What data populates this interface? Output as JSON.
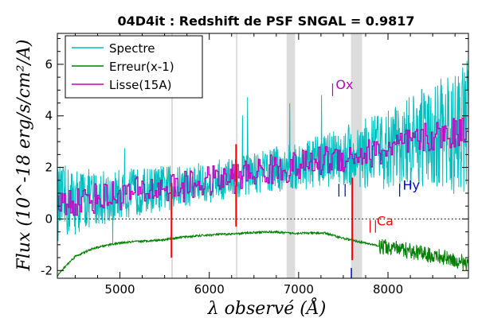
{
  "chart_data": {
    "type": "line",
    "title": "04D4it : Redshift de PSF SNGAL = 0.9817",
    "xlabel": "λ observé (Å)",
    "ylabel": "Flux (10^-18 erg/s/cm²/A)",
    "xlim": [
      4300,
      8900
    ],
    "ylim": [
      -2.3,
      7.2
    ],
    "xticks": [
      5000,
      6000,
      7000,
      8000
    ],
    "xtick_labels": [
      "5000",
      "6000",
      "7000",
      "8000"
    ],
    "yticks": [
      -2,
      0,
      2,
      4,
      6
    ],
    "ytick_labels": [
      "-2",
      "0",
      "2",
      "4",
      "6"
    ],
    "legend": {
      "location": "upper-left",
      "entries": [
        {
          "label": "Spectre",
          "color": "#00bfbf"
        },
        {
          "label": "Erreur(x-1)",
          "color": "#008000"
        },
        {
          "label": "Lisse(15A)",
          "color": "#bf00bf"
        }
      ]
    },
    "series": [
      {
        "name": "Spectre",
        "color": "#00bfbf",
        "x": [
          4300,
          4500,
          4700,
          4900,
          5100,
          5300,
          5500,
          5700,
          5900,
          6100,
          6300,
          6500,
          6700,
          6900,
          7100,
          7300,
          7500,
          7700,
          7900,
          8100,
          8300,
          8500,
          8700,
          8900
        ],
        "y": [
          0.6,
          0.7,
          0.8,
          0.9,
          1.0,
          1.1,
          1.2,
          1.25,
          1.4,
          1.5,
          1.6,
          1.8,
          1.9,
          2.0,
          2.1,
          2.3,
          2.4,
          2.5,
          2.6,
          2.8,
          3.0,
          3.2,
          3.3,
          3.5
        ],
        "noise": [
          2.0,
          1.8,
          1.5,
          1.4,
          1.3,
          1.2,
          1.2,
          1.1,
          1.1,
          1.1,
          1.1,
          1.1,
          1.2,
          1.2,
          1.3,
          1.4,
          1.6,
          1.8,
          2.0,
          2.2,
          2.5,
          2.8,
          3.2,
          3.6
        ]
      },
      {
        "name": "Lisse(15A)",
        "color": "#bf00bf",
        "x": [
          4300,
          4500,
          4700,
          4900,
          5100,
          5300,
          5500,
          5700,
          5900,
          6100,
          6300,
          6500,
          6700,
          6900,
          7100,
          7300,
          7500,
          7700,
          7900,
          8100,
          8300,
          8500,
          8700,
          8900
        ],
        "y": [
          0.6,
          0.7,
          0.8,
          0.9,
          1.0,
          1.1,
          1.2,
          1.25,
          1.4,
          1.5,
          1.6,
          1.8,
          1.9,
          2.0,
          2.1,
          2.3,
          2.4,
          2.5,
          2.6,
          2.8,
          3.0,
          3.2,
          3.3,
          3.5
        ]
      },
      {
        "name": "Erreur(x-1)",
        "color": "#008000",
        "x": [
          4300,
          4400,
          4500,
          4700,
          4900,
          5100,
          5300,
          5500,
          5700,
          5900,
          6100,
          6300,
          6500,
          6700,
          6900,
          7100,
          7300,
          7500,
          7700,
          7900,
          8100,
          8300,
          8500,
          8700,
          8900
        ],
        "y": [
          -2.2,
          -1.8,
          -1.45,
          -1.15,
          -0.98,
          -0.9,
          -0.85,
          -0.8,
          -0.7,
          -0.65,
          -0.6,
          -0.58,
          -0.52,
          -0.5,
          -0.55,
          -0.55,
          -0.55,
          -0.75,
          -0.9,
          -1.05,
          -1.15,
          -1.3,
          -1.4,
          -1.55,
          -1.75
        ]
      }
    ],
    "shaded_bands": [
      [
        5575,
        5582
      ],
      [
        6298,
        6304
      ],
      [
        6865,
        6960
      ],
      [
        7585,
        7710
      ]
    ],
    "spikes": [
      {
        "x": 5577,
        "y1": -1.5,
        "y2": 1.4
      },
      {
        "x": 6300,
        "y1": -0.3,
        "y2": 2.9
      },
      {
        "x": 7600,
        "y1": -1.6,
        "y2": 1.6
      }
    ],
    "annotations": [
      {
        "text": "Ox",
        "x": 7370,
        "y": 5.2,
        "color": "#bf00bf",
        "ticks": [
          7380
        ]
      },
      {
        "text": "Hy",
        "x": 8120,
        "y": 1.3,
        "color": "#0000cc",
        "ticks": [
          7450,
          7520,
          8130
        ]
      },
      {
        "text": "Ca",
        "x": 7830,
        "y": -0.1,
        "color": "#ff0000",
        "ticks": [
          7800,
          7860
        ]
      }
    ],
    "absorption_marker": {
      "x": 7590,
      "y1": -2.3,
      "y2": -1.9,
      "color": "#0000cc"
    },
    "zero_line": 0
  }
}
